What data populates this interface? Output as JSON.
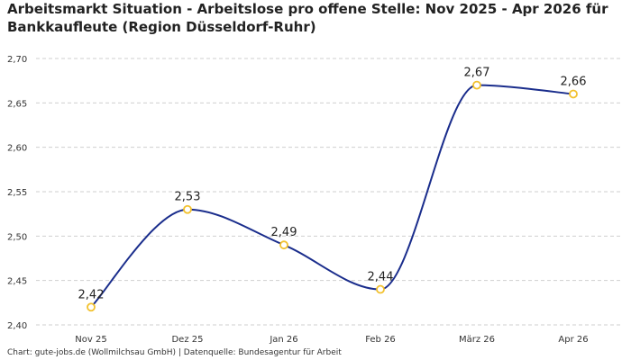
{
  "chart_data": {
    "type": "line",
    "title": "Arbeitsmarkt Situation - Arbeitslose pro offene Stelle: Nov 2025 - Apr 2026 für Bankkaufleute (Region Düsseldorf-Ruhr)",
    "categories": [
      "Nov 25",
      "Dez 25",
      "Jan 26",
      "Feb 26",
      "März 26",
      "Apr 26"
    ],
    "series": [
      {
        "values": [
          2.42,
          2.53,
          2.49,
          2.44,
          2.67,
          2.66
        ],
        "labels": [
          "2,42",
          "2,53",
          "2,49",
          "2,44",
          "2,67",
          "2,66"
        ]
      }
    ],
    "y_ticks": [
      "2,40",
      "2,45",
      "2,50",
      "2,55",
      "2,60",
      "2,65",
      "2,70"
    ],
    "ylim": [
      2.4,
      2.7
    ],
    "grid": true,
    "line_color": "#1a2d8c",
    "marker_color": "#f2c12e"
  },
  "footer": "Chart: gute-jobs.de (Wollmilchsau GmbH) | Datenquelle: Bundesagentur für Arbeit"
}
